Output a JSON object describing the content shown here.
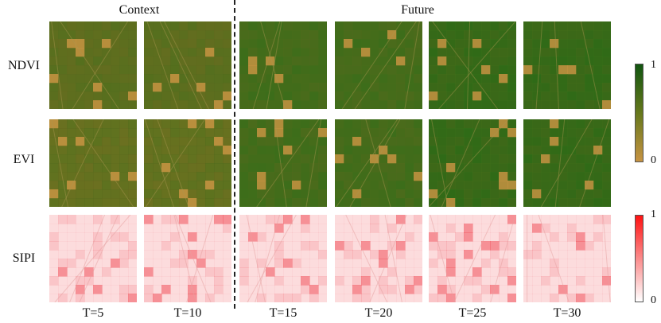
{
  "headers": {
    "context": "Context",
    "future": "Future"
  },
  "rows": [
    {
      "label": "NDVI",
      "colormap": "green"
    },
    {
      "label": "EVI",
      "colormap": "green"
    },
    {
      "label": "SIPI",
      "colormap": "red"
    }
  ],
  "columns": [
    {
      "label": "T=5",
      "group": "context"
    },
    {
      "label": "T=10",
      "group": "context"
    },
    {
      "label": "T=15",
      "group": "future"
    },
    {
      "label": "T=20",
      "group": "future"
    },
    {
      "label": "T=25",
      "group": "future"
    },
    {
      "label": "T=30",
      "group": "future"
    }
  ],
  "colorbars": {
    "green": {
      "max_label": "1",
      "min_label": "0",
      "high_color": "#115510",
      "low_color": "#c79342"
    },
    "red": {
      "max_label": "1",
      "min_label": "0",
      "high_color": "#ff1212",
      "low_color": "#ffffff"
    }
  }
}
